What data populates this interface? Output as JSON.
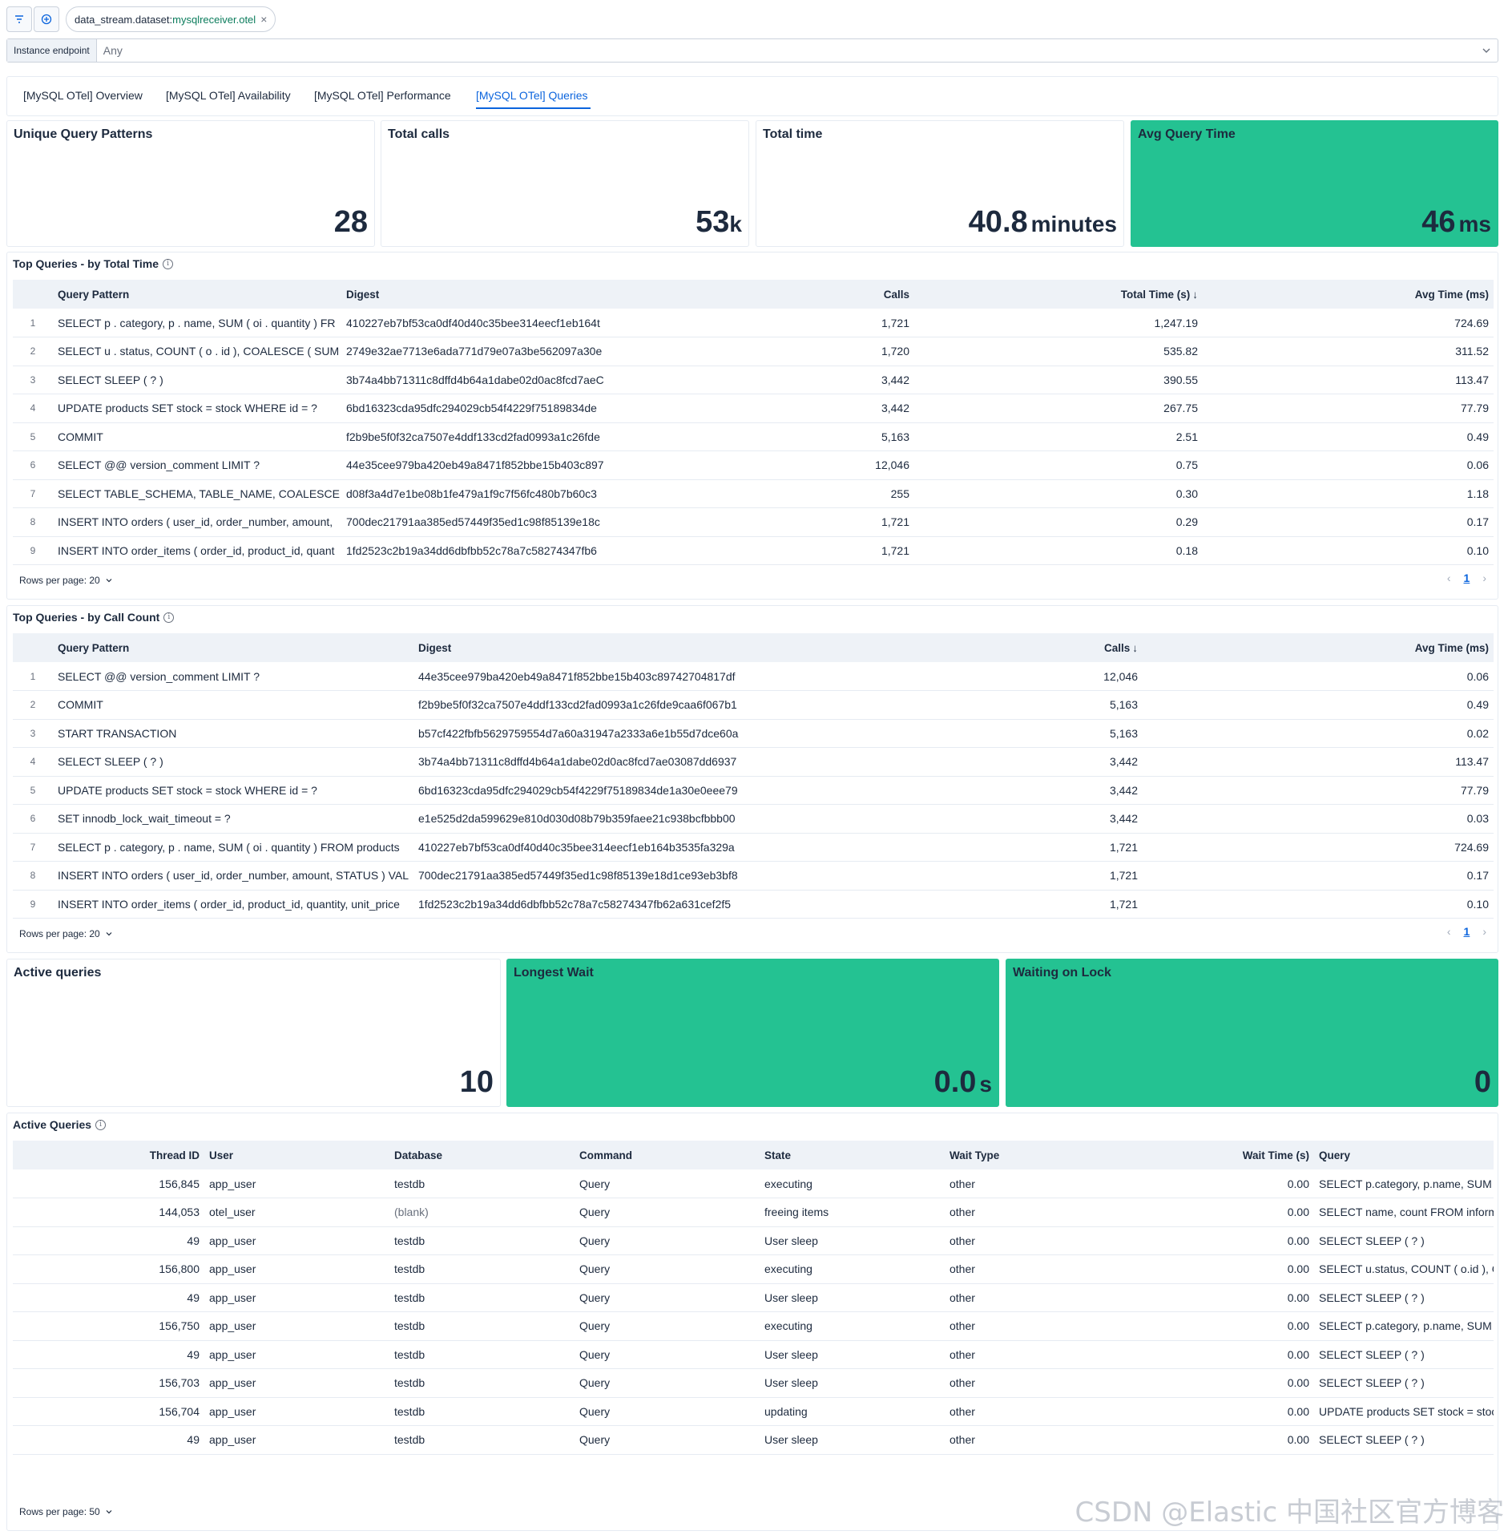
{
  "filter": {
    "key": "data_stream.dataset:",
    "value": "mysqlreceiver.otel",
    "remove": "×"
  },
  "control": {
    "label": "Instance endpoint",
    "value": "Any"
  },
  "tabs": [
    {
      "label": "[MySQL OTel] Overview",
      "active": false
    },
    {
      "label": "[MySQL OTel] Availability",
      "active": false
    },
    {
      "label": "[MySQL OTel] Performance",
      "active": false
    },
    {
      "label": "[MySQL OTel] Queries",
      "active": true
    }
  ],
  "metrics": {
    "unique_patterns": {
      "title": "Unique Query Patterns",
      "value": "28",
      "unit": ""
    },
    "total_calls": {
      "title": "Total calls",
      "value": "53",
      "unit": "k"
    },
    "total_time": {
      "title": "Total time",
      "value": "40.8",
      "unit": "minutes"
    },
    "avg_query_time": {
      "title": "Avg Query Time",
      "value": "46",
      "unit": "ms"
    }
  },
  "colors": {
    "accent_green": "#24c292",
    "link_blue": "#0b64dd"
  },
  "top_by_time": {
    "title": "Top Queries - by Total Time",
    "columns": {
      "pattern": "Query Pattern",
      "digest": "Digest",
      "calls": "Calls",
      "total": "Total Time (s)",
      "avg": "Avg Time (ms)"
    },
    "sort_arrow": "↓",
    "rows": [
      {
        "n": "1",
        "pattern": "SELECT p . category, p . name, SUM ( oi . quantity ) FR",
        "digest": "410227eb7bf53ca0df40d40c35bee314eecf1eb164t",
        "calls": "1,721",
        "total": "1,247.19",
        "avg": "724.69"
      },
      {
        "n": "2",
        "pattern": "SELECT u . status, COUNT ( o . id ), COALESCE ( SUM",
        "digest": "2749e32ae7713e6ada771d79e07a3be562097a30e",
        "calls": "1,720",
        "total": "535.82",
        "avg": "311.52"
      },
      {
        "n": "3",
        "pattern": "SELECT SLEEP ( ? )",
        "digest": "3b74a4bb71311c8dffd4b64a1dabe02d0ac8fcd7aeC",
        "calls": "3,442",
        "total": "390.55",
        "avg": "113.47"
      },
      {
        "n": "4",
        "pattern": "UPDATE products SET stock = stock WHERE id = ?",
        "digest": "6bd16323cda95dfc294029cb54f4229f75189834de",
        "calls": "3,442",
        "total": "267.75",
        "avg": "77.79"
      },
      {
        "n": "5",
        "pattern": "COMMIT",
        "digest": "f2b9be5f0f32ca7507e4ddf133cd2fad0993a1c26fde",
        "calls": "5,163",
        "total": "2.51",
        "avg": "0.49"
      },
      {
        "n": "6",
        "pattern": "SELECT @@ version_comment LIMIT ?",
        "digest": "44e35cee979ba420eb49a8471f852bbe15b403c897",
        "calls": "12,046",
        "total": "0.75",
        "avg": "0.06"
      },
      {
        "n": "7",
        "pattern": "SELECT TABLE_SCHEMA, TABLE_NAME, COALESCE ( '",
        "digest": "d08f3a4d7e1be08b1fe479a1f9c7f56fc480b7b60c3",
        "calls": "255",
        "total": "0.30",
        "avg": "1.18"
      },
      {
        "n": "8",
        "pattern": "INSERT INTO orders ( user_id, order_number, amount,",
        "digest": "700dec21791aa385ed57449f35ed1c98f85139e18c",
        "calls": "1,721",
        "total": "0.29",
        "avg": "0.17"
      },
      {
        "n": "9",
        "pattern": "INSERT INTO order_items ( order_id, product_id, quant",
        "digest": "1fd2523c2b19a34dd6dbfbb52c78a7c58274347fb6",
        "calls": "1,721",
        "total": "0.18",
        "avg": "0.10"
      }
    ],
    "rows_per_page": "Rows per page: 20",
    "page": "1"
  },
  "top_by_calls": {
    "title": "Top Queries - by Call Count",
    "columns": {
      "pattern": "Query Pattern",
      "digest": "Digest",
      "calls": "Calls",
      "avg": "Avg Time (ms)"
    },
    "sort_arrow": "↓",
    "rows": [
      {
        "n": "1",
        "pattern": "SELECT @@ version_comment LIMIT ?",
        "digest": "44e35cee979ba420eb49a8471f852bbe15b403c89742704817df",
        "calls": "12,046",
        "avg": "0.06"
      },
      {
        "n": "2",
        "pattern": "COMMIT",
        "digest": "f2b9be5f0f32ca7507e4ddf133cd2fad0993a1c26fde9caa6f067b1",
        "calls": "5,163",
        "avg": "0.49"
      },
      {
        "n": "3",
        "pattern": "START TRANSACTION",
        "digest": "b57cf422fbfb5629759554d7a60a31947a2333a6e1b55d7dce60a",
        "calls": "5,163",
        "avg": "0.02"
      },
      {
        "n": "4",
        "pattern": "SELECT SLEEP ( ? )",
        "digest": "3b74a4bb71311c8dffd4b64a1dabe02d0ac8fcd7ae03087dd6937",
        "calls": "3,442",
        "avg": "113.47"
      },
      {
        "n": "5",
        "pattern": "UPDATE products SET stock = stock WHERE id = ?",
        "digest": "6bd16323cda95dfc294029cb54f4229f75189834de1a30e0eee79",
        "calls": "3,442",
        "avg": "77.79"
      },
      {
        "n": "6",
        "pattern": "SET innodb_lock_wait_timeout = ?",
        "digest": "e1e525d2da599629e810d030d08b79b359faee21c938bcfbbb00",
        "calls": "3,442",
        "avg": "0.03"
      },
      {
        "n": "7",
        "pattern": "SELECT p . category, p . name, SUM ( oi . quantity ) FROM products",
        "digest": "410227eb7bf53ca0df40d40c35bee314eecf1eb164b3535fa329a",
        "calls": "1,721",
        "avg": "724.69"
      },
      {
        "n": "8",
        "pattern": "INSERT INTO orders ( user_id, order_number, amount, STATUS ) VAL",
        "digest": "700dec21791aa385ed57449f35ed1c98f85139e18d1ce93eb3bf8",
        "calls": "1,721",
        "avg": "0.17"
      },
      {
        "n": "9",
        "pattern": "INSERT INTO order_items ( order_id, product_id, quantity, unit_price",
        "digest": "1fd2523c2b19a34dd6dbfbb52c78a7c58274347fb62a631cef2f5",
        "calls": "1,721",
        "avg": "0.10"
      }
    ],
    "rows_per_page": "Rows per page: 20",
    "page": "1"
  },
  "active_metrics": {
    "active": {
      "title": "Active queries",
      "value": "10",
      "unit": ""
    },
    "longest_wait": {
      "title": "Longest Wait",
      "value": "0.0",
      "unit": "s"
    },
    "waiting_lock": {
      "title": "Waiting on Lock",
      "value": "0",
      "unit": ""
    }
  },
  "active_table": {
    "title": "Active Queries",
    "columns": {
      "thread": "Thread ID",
      "user": "User",
      "database": "Database",
      "command": "Command",
      "state": "State",
      "wait_type": "Wait Type",
      "wait_time": "Wait Time (s)",
      "query": "Query"
    },
    "rows": [
      {
        "thread": "156,845",
        "user": "app_user",
        "database": "testdb",
        "command": "Query",
        "state": "executing",
        "wait_type": "other",
        "wait_time": "0.00",
        "query": "SELECT p.category, p.name, SUM"
      },
      {
        "thread": "144,053",
        "user": "otel_user",
        "database": "(blank)",
        "command": "Query",
        "state": "freeing items",
        "wait_type": "other",
        "wait_time": "0.00",
        "query": "SELECT name, count FROM inform"
      },
      {
        "thread": "49",
        "user": "app_user",
        "database": "testdb",
        "command": "Query",
        "state": "User sleep",
        "wait_type": "other",
        "wait_time": "0.00",
        "query": "SELECT SLEEP ( ? )"
      },
      {
        "thread": "156,800",
        "user": "app_user",
        "database": "testdb",
        "command": "Query",
        "state": "executing",
        "wait_type": "other",
        "wait_time": "0.00",
        "query": "SELECT u.status, COUNT ( o.id ), C"
      },
      {
        "thread": "49",
        "user": "app_user",
        "database": "testdb",
        "command": "Query",
        "state": "User sleep",
        "wait_type": "other",
        "wait_time": "0.00",
        "query": "SELECT SLEEP ( ? )"
      },
      {
        "thread": "156,750",
        "user": "app_user",
        "database": "testdb",
        "command": "Query",
        "state": "executing",
        "wait_type": "other",
        "wait_time": "0.00",
        "query": "SELECT p.category, p.name, SUM"
      },
      {
        "thread": "49",
        "user": "app_user",
        "database": "testdb",
        "command": "Query",
        "state": "User sleep",
        "wait_type": "other",
        "wait_time": "0.00",
        "query": "SELECT SLEEP ( ? )"
      },
      {
        "thread": "156,703",
        "user": "app_user",
        "database": "testdb",
        "command": "Query",
        "state": "User sleep",
        "wait_type": "other",
        "wait_time": "0.00",
        "query": "SELECT SLEEP ( ? )"
      },
      {
        "thread": "156,704",
        "user": "app_user",
        "database": "testdb",
        "command": "Query",
        "state": "updating",
        "wait_type": "other",
        "wait_time": "0.00",
        "query": "UPDATE products SET stock = stoc"
      },
      {
        "thread": "49",
        "user": "app_user",
        "database": "testdb",
        "command": "Query",
        "state": "User sleep",
        "wait_type": "other",
        "wait_time": "0.00",
        "query": "SELECT SLEEP ( ? )"
      }
    ],
    "rows_per_page": "Rows per page: 50"
  },
  "watermark": "CSDN @Elastic 中国社区官方博客"
}
